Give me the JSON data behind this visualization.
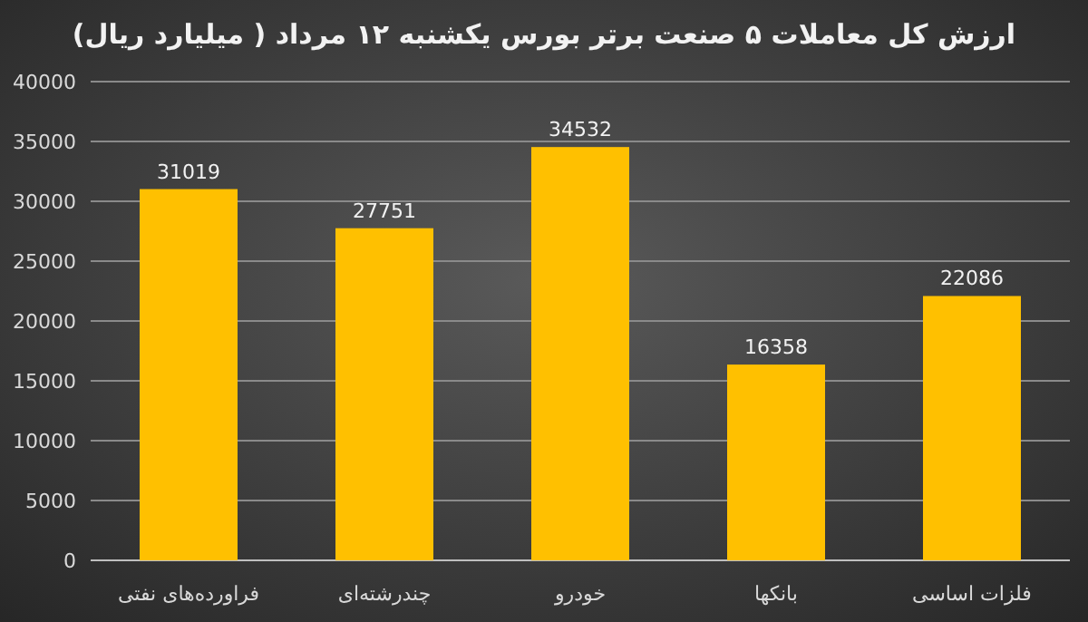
{
  "chart_data": {
    "type": "bar",
    "title": "ارزش کل معاملات ۵ صنعت برتر بورس یکشنبه ۱۲ مرداد ( میلیارد ریال)",
    "categories": [
      "فراورده‌های نفتی",
      "چندرشته‌ای",
      "خودرو",
      "بانکها",
      "فلزات اساسی"
    ],
    "values": [
      31019,
      27751,
      34532,
      16358,
      22086
    ],
    "color": "#ffc000",
    "ylim": [
      0,
      40000
    ],
    "yticks": [
      0,
      5000,
      10000,
      15000,
      20000,
      25000,
      30000,
      35000,
      40000
    ],
    "grid": "y",
    "data_labels": true
  }
}
